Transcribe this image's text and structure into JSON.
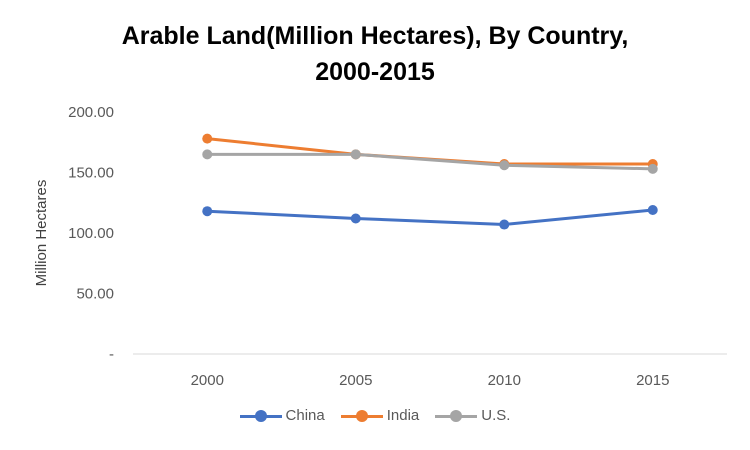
{
  "chart_data": {
    "type": "line",
    "title_lines": [
      "Arable Land(Million Hectares), By Country,",
      "2000-2015"
    ],
    "xlabel": "",
    "ylabel": "Million Hectares",
    "categories": [
      "2000",
      "2005",
      "2010",
      "2015"
    ],
    "ylim": [
      0,
      200
    ],
    "yticks": [
      0,
      50,
      100,
      150,
      200
    ],
    "ytick_labels": [
      "-",
      "50.00",
      "100.00",
      "150.00",
      "200.00"
    ],
    "grid": false,
    "legend_position": "bottom",
    "series": [
      {
        "name": "China",
        "color": "#4472C4",
        "values": [
          118,
          112,
          107,
          119
        ]
      },
      {
        "name": "India",
        "color": "#ED7D31",
        "values": [
          178,
          165,
          157,
          157
        ]
      },
      {
        "name": "U.S.",
        "color": "#A5A5A5",
        "values": [
          165,
          165,
          156,
          153
        ]
      }
    ]
  }
}
